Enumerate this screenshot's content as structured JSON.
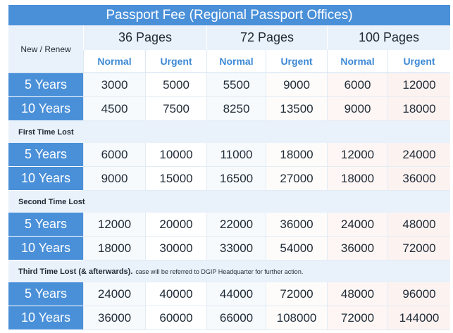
{
  "title": "Passport Fee (Regional Passport Offices)",
  "header": {
    "row_label": "New / Renew",
    "page_groups": [
      "36 Pages",
      "72 Pages",
      "100 Pages"
    ],
    "sub_columns": [
      "Normal",
      "Urgent",
      "Normal",
      "Urgent",
      "Normal",
      "Urgent"
    ]
  },
  "sections": [
    {
      "label": "",
      "note": "",
      "rows": [
        {
          "duration": "5 Years",
          "values": [
            "3000",
            "5000",
            "5500",
            "9000",
            "6000",
            "12000"
          ]
        },
        {
          "duration": "10 Years",
          "values": [
            "4500",
            "7500",
            "8250",
            "13500",
            "9000",
            "18000"
          ]
        }
      ]
    },
    {
      "label": "First Time Lost",
      "note": "",
      "rows": [
        {
          "duration": "5 Years",
          "values": [
            "6000",
            "10000",
            "11000",
            "18000",
            "12000",
            "24000"
          ]
        },
        {
          "duration": "10 Years",
          "values": [
            "9000",
            "15000",
            "16500",
            "27000",
            "18000",
            "36000"
          ]
        }
      ]
    },
    {
      "label": "Second Time Lost",
      "note": "",
      "rows": [
        {
          "duration": "5 Years",
          "values": [
            "12000",
            "20000",
            "22000",
            "36000",
            "24000",
            "48000"
          ]
        },
        {
          "duration": "10 Years",
          "values": [
            "18000",
            "30000",
            "33000",
            "54000",
            "36000",
            "72000"
          ]
        }
      ]
    },
    {
      "label": "Third Time Lost (& afterwards).",
      "note": "case will be referred to DGIP Headquarter for further action.",
      "rows": [
        {
          "duration": "5 Years",
          "values": [
            "24000",
            "40000",
            "44000",
            "72000",
            "48000",
            "96000"
          ]
        },
        {
          "duration": "10 Years",
          "values": [
            "36000",
            "60000",
            "66000",
            "108000",
            "72000",
            "144000"
          ]
        }
      ]
    }
  ]
}
